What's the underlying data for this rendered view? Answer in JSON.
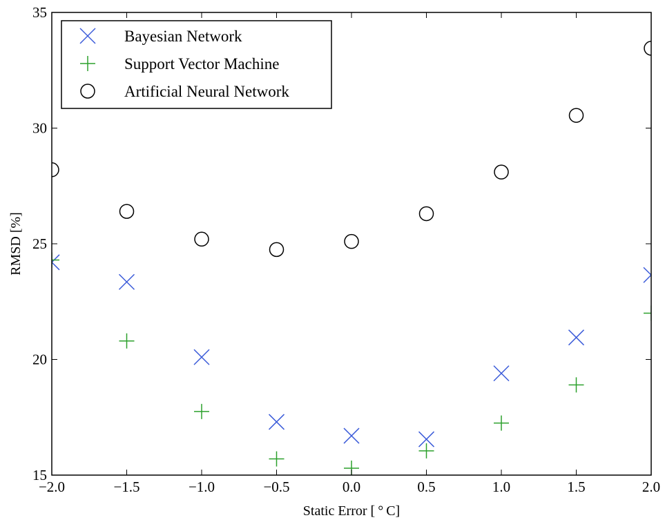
{
  "chart_data": {
    "type": "scatter",
    "title": "",
    "xlabel": "Static Error [ ° C]",
    "ylabel": "RMSD [%]",
    "xlim": [
      -2.0,
      2.0
    ],
    "ylim": [
      15,
      35
    ],
    "xticks": [
      -2.0,
      -1.5,
      -1.0,
      -0.5,
      0.0,
      0.5,
      1.0,
      1.5,
      2.0
    ],
    "xtick_labels": [
      "−2.0",
      "−1.5",
      "−1.0",
      "−0.5",
      "0.0",
      "0.5",
      "1.0",
      "1.5",
      "2.0"
    ],
    "yticks": [
      15,
      20,
      25,
      30,
      35
    ],
    "ytick_labels": [
      "15",
      "20",
      "25",
      "30",
      "35"
    ],
    "grid": false,
    "legend_position": "upper-left",
    "x": [
      -2.0,
      -1.5,
      -1.0,
      -0.5,
      0.0,
      0.5,
      1.0,
      1.5,
      2.0
    ],
    "series": [
      {
        "name": "Bayesian Network",
        "marker": "x",
        "color": "#3b5bd9",
        "values": [
          24.2,
          23.35,
          20.1,
          17.3,
          16.7,
          16.55,
          19.4,
          20.95,
          23.65
        ]
      },
      {
        "name": "Support Vector Machine",
        "marker": "+",
        "color": "#2ca02c",
        "values": [
          24.3,
          20.8,
          17.75,
          15.7,
          15.3,
          16.05,
          17.25,
          18.9,
          22.0
        ]
      },
      {
        "name": "Artificial Neural Network",
        "marker": "o",
        "color": "#000000",
        "values": [
          28.2,
          26.4,
          25.2,
          24.75,
          25.1,
          26.3,
          28.1,
          30.55,
          33.45
        ]
      }
    ]
  }
}
